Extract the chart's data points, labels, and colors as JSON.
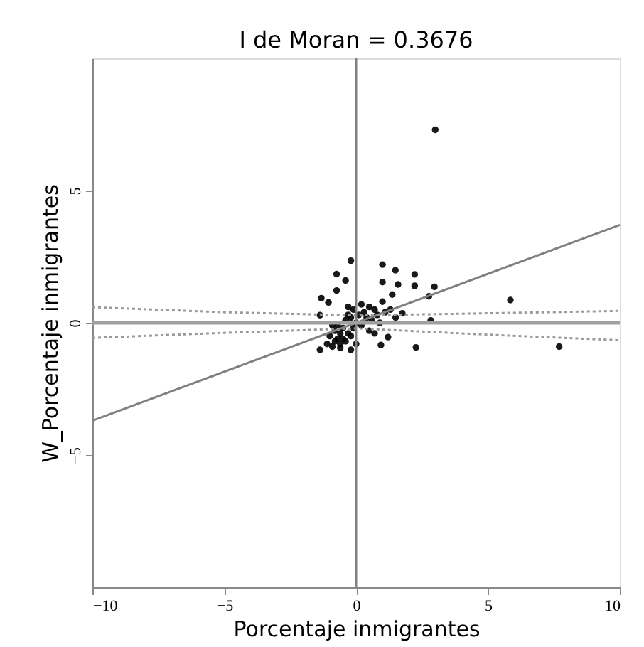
{
  "chart_data": {
    "type": "scatter",
    "title": "I de Moran = 0.3676",
    "xlabel": "Porcentaje inmigrantes",
    "ylabel": "W_Porcentaje inmigrantes",
    "xlim": [
      -10,
      10
    ],
    "ylim": [
      -10,
      10
    ],
    "xticks": [
      -10,
      -5,
      0,
      5,
      10
    ],
    "yticks": [
      -5,
      0,
      5
    ],
    "grid": false,
    "series": [
      {
        "color": "#000000",
        "marker": "circle",
        "x": [
          3.0,
          5.85,
          7.7,
          -0.2,
          1.0,
          -0.74,
          1.49,
          2.22,
          -0.4,
          1.0,
          1.59,
          2.97,
          -0.74,
          2.22,
          2.76,
          -1.32,
          -1.05,
          1.37,
          2.83,
          2.27,
          0.94,
          1.21,
          -1.37,
          -1.37,
          -0.2,
          1.75,
          -1.1,
          -1.0,
          -0.9,
          -0.8,
          -0.8,
          -0.7,
          -0.7,
          -0.6,
          -0.6,
          -0.5,
          -0.5,
          -0.4,
          -0.4,
          -0.3,
          -0.3,
          -0.2,
          -0.2,
          -0.1,
          -0.1,
          0.0,
          0.1,
          0.2,
          0.3,
          0.4,
          0.5,
          0.6,
          0.7,
          0.8,
          0.9,
          1.1,
          1.3,
          1.5,
          -0.6,
          -0.9,
          0.2,
          0.5,
          0.0,
          -0.3,
          1.0,
          0.7
        ],
        "values": [
          7.3,
          0.86,
          -0.9,
          2.35,
          2.2,
          1.84,
          1.99,
          1.83,
          1.6,
          1.54,
          1.45,
          1.36,
          1.22,
          1.4,
          1.0,
          0.93,
          0.77,
          1.07,
          0.09,
          -0.93,
          -0.84,
          -0.54,
          0.29,
          -1.02,
          -1.02,
          0.36,
          -0.8,
          -0.5,
          -0.9,
          -0.3,
          -0.7,
          -0.6,
          -0.1,
          -0.8,
          -0.4,
          -0.2,
          -0.6,
          -0.7,
          0.1,
          -0.4,
          0.3,
          -0.5,
          0.2,
          -0.2,
          0.5,
          0.0,
          0.3,
          -0.1,
          0.4,
          0.2,
          0.6,
          0.1,
          0.5,
          0.3,
          0.0,
          0.4,
          0.5,
          0.2,
          -0.95,
          -0.1,
          0.7,
          -0.3,
          -0.8,
          0.6,
          0.8,
          -0.4
        ]
      },
      {
        "type": "line",
        "color": "#808080",
        "line_style": "solid",
        "marker": "none",
        "x": [
          -10,
          10
        ],
        "values": [
          -3.7,
          3.7
        ]
      },
      {
        "type": "line",
        "color": "#999999",
        "line_style": "dotted",
        "marker": "none",
        "x": [
          -10,
          -5,
          0,
          5,
          10
        ],
        "values": [
          0.59,
          0.4,
          0.28,
          0.36,
          0.45
        ]
      },
      {
        "type": "line",
        "color": "#999999",
        "line_style": "dotted",
        "marker": "none",
        "x": [
          -10,
          -5,
          0,
          5,
          10
        ],
        "values": [
          -0.57,
          -0.38,
          -0.21,
          -0.45,
          -0.66
        ]
      }
    ],
    "ref_lines": [
      {
        "axis": "x",
        "value": 0,
        "color": "#808080"
      },
      {
        "axis": "y",
        "value": 0,
        "color": "#a0a0a0"
      }
    ]
  }
}
